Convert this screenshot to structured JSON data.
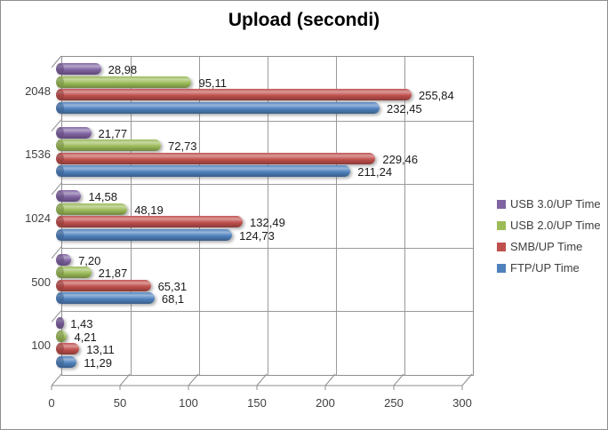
{
  "chart_data": {
    "type": "bar",
    "orientation": "horizontal",
    "title": "Upload (secondi)",
    "categories": [
      "2048",
      "1536",
      "1024",
      "500",
      "100"
    ],
    "series": [
      {
        "name": "USB 3.0/UP Time",
        "color": "#8064A2",
        "values": [
          28.98,
          21.77,
          14.58,
          7.2,
          1.43
        ],
        "labels": [
          "28,98",
          "21,77",
          "14,58",
          "7,20",
          "1,43"
        ]
      },
      {
        "name": "USB 2.0/UP Time",
        "color": "#9BBB59",
        "values": [
          95.11,
          72.73,
          48.19,
          21.87,
          4.21
        ],
        "labels": [
          "95,11",
          "72,73",
          "48,19",
          "21,87",
          "4,21"
        ]
      },
      {
        "name": "SMB/UP Time",
        "color": "#C0504D",
        "values": [
          255.84,
          229.46,
          132.49,
          65.31,
          13.11
        ],
        "labels": [
          "255,84",
          "229,46",
          "132,49",
          "65,31",
          "13,11"
        ]
      },
      {
        "name": "FTP/UP Time",
        "color": "#4F81BD",
        "values": [
          232.45,
          211.24,
          124.73,
          68.1,
          11.29
        ],
        "labels": [
          "232,45",
          "211,24",
          "124,73",
          "68,1",
          "11,29"
        ]
      }
    ],
    "x_ticks": [
      0,
      50,
      100,
      150,
      200,
      250,
      300
    ],
    "xlim": [
      0,
      300
    ],
    "grid": true,
    "legend_position": "right",
    "frame_color": "#8e8e8e",
    "grid_color": "#9a9a9a"
  }
}
